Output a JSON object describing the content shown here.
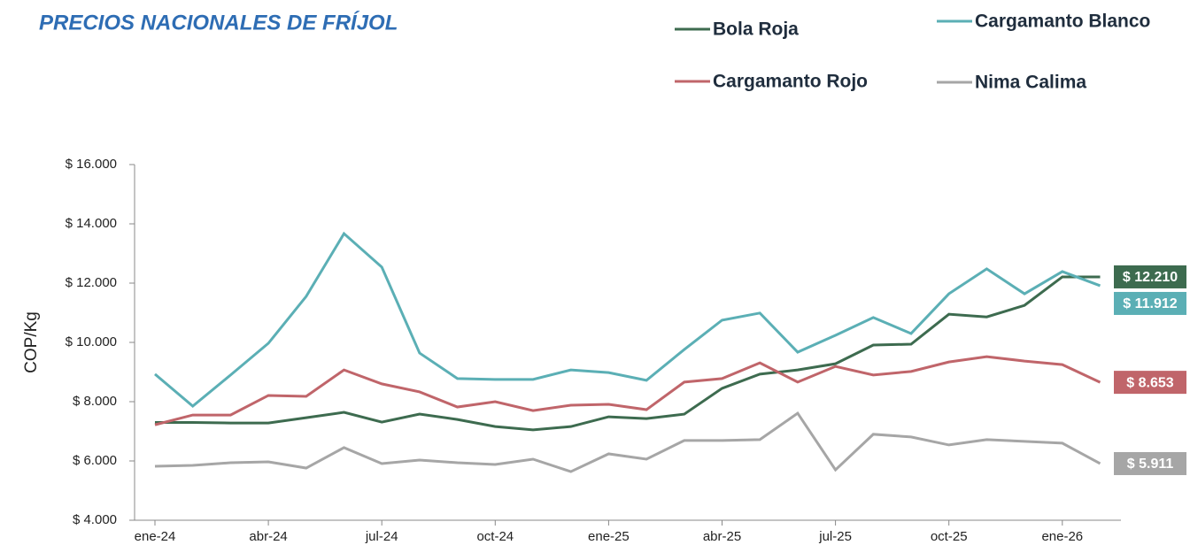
{
  "chart_data": {
    "type": "line",
    "title": "PRECIOS NACIONALES DE FRÍJOL",
    "y_label": "COP/Kg",
    "categories": [
      "ene-24",
      null,
      null,
      "abr-24",
      null,
      null,
      "jul-24",
      null,
      null,
      "oct-24",
      null,
      null,
      "ene-25",
      null,
      null,
      "abr-25",
      null,
      null,
      "jul-25",
      null,
      null,
      "oct-25",
      null,
      null,
      "ene-26",
      null
    ],
    "ylim": [
      4000,
      16000
    ],
    "yticks": [
      {
        "value": 4000,
        "label": "$ 4.000"
      },
      {
        "value": 6000,
        "label": "$ 6.000"
      },
      {
        "value": 8000,
        "label": "$ 8.000"
      },
      {
        "value": 10000,
        "label": "$ 10.000"
      },
      {
        "value": 12000,
        "label": "$ 12.000"
      },
      {
        "value": 14000,
        "label": "$ 14.000"
      },
      {
        "value": 16000,
        "label": "$ 16.000"
      }
    ],
    "series": [
      {
        "name": "Bola Roja",
        "color": "#3d6b4f",
        "values": [
          7300,
          7300,
          7280,
          7280,
          7460,
          7640,
          7310,
          7580,
          7400,
          7160,
          7050,
          7160,
          7490,
          7430,
          7580,
          8450,
          8930,
          9070,
          9280,
          9910,
          9940,
          10950,
          10860,
          11250,
          12210,
          12210
        ],
        "value_labels": [
          null,
          null,
          null,
          null,
          null,
          null,
          null,
          null,
          null,
          null,
          null,
          null,
          null,
          null,
          null,
          null,
          null,
          null,
          null,
          null,
          null,
          null,
          null,
          null,
          null,
          "$ 12.210"
        ]
      },
      {
        "name": "Cargamanto Blanco",
        "color": "#5bafb5",
        "values": [
          8930,
          7850,
          8900,
          9970,
          11550,
          13670,
          12540,
          9640,
          8780,
          8750,
          8750,
          9070,
          8980,
          8720,
          9760,
          10750,
          10990,
          9670,
          10240,
          10840,
          10300,
          11640,
          12480,
          11640,
          12390,
          11912
        ],
        "value_labels": [
          null,
          null,
          null,
          null,
          null,
          null,
          null,
          null,
          null,
          null,
          null,
          null,
          null,
          null,
          null,
          null,
          null,
          null,
          null,
          null,
          null,
          null,
          null,
          null,
          null,
          "$ 11.912"
        ]
      },
      {
        "name": "Cargamanto Rojo",
        "color": "#c0656a",
        "values": [
          7220,
          7550,
          7550,
          8210,
          8180,
          9070,
          8600,
          8330,
          7820,
          8000,
          7700,
          7880,
          7910,
          7730,
          8660,
          8780,
          9310,
          8660,
          9190,
          8900,
          9020,
          9340,
          9520,
          9370,
          9250,
          8653
        ],
        "value_labels": [
          null,
          null,
          null,
          null,
          null,
          null,
          null,
          null,
          null,
          null,
          null,
          null,
          null,
          null,
          null,
          null,
          null,
          null,
          null,
          null,
          null,
          null,
          null,
          null,
          null,
          "$ 8.653"
        ]
      },
      {
        "name": "Nima Calima",
        "color": "#a6a6a6",
        "values": [
          5820,
          5850,
          5940,
          5970,
          5760,
          6450,
          5910,
          6030,
          5940,
          5880,
          6060,
          5640,
          6240,
          6060,
          6690,
          6690,
          6720,
          7610,
          5700,
          6900,
          6810,
          6540,
          6720,
          6660,
          6600,
          5911
        ],
        "value_labels": [
          null,
          null,
          null,
          null,
          null,
          null,
          null,
          null,
          null,
          null,
          null,
          null,
          null,
          null,
          null,
          null,
          null,
          null,
          null,
          null,
          null,
          null,
          null,
          null,
          null,
          "$ 5.911"
        ]
      }
    ]
  }
}
